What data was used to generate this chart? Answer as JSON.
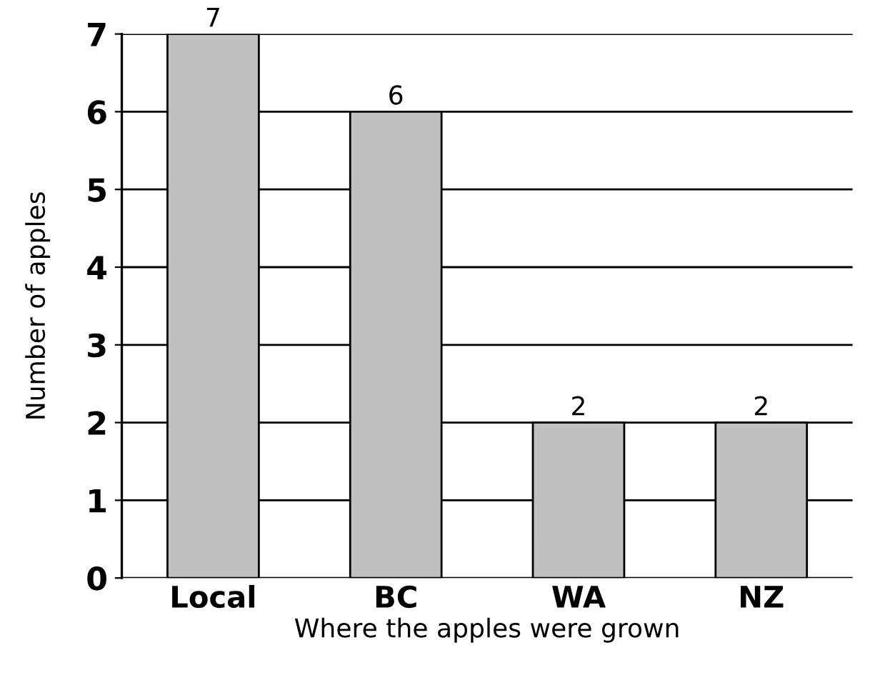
{
  "chart_data": {
    "type": "bar",
    "xlabel": "Where the apples were grown",
    "ylabel": "Number of apples",
    "categories": [
      "Local",
      "BC",
      "WA",
      "NZ"
    ],
    "values": [
      7,
      6,
      2,
      2
    ],
    "color": "#c0c0c0",
    "ylim": [
      0,
      7
    ],
    "yticks": [
      0,
      1,
      2,
      3,
      4,
      5,
      6,
      7
    ],
    "grid": "y",
    "data_labels": true
  }
}
